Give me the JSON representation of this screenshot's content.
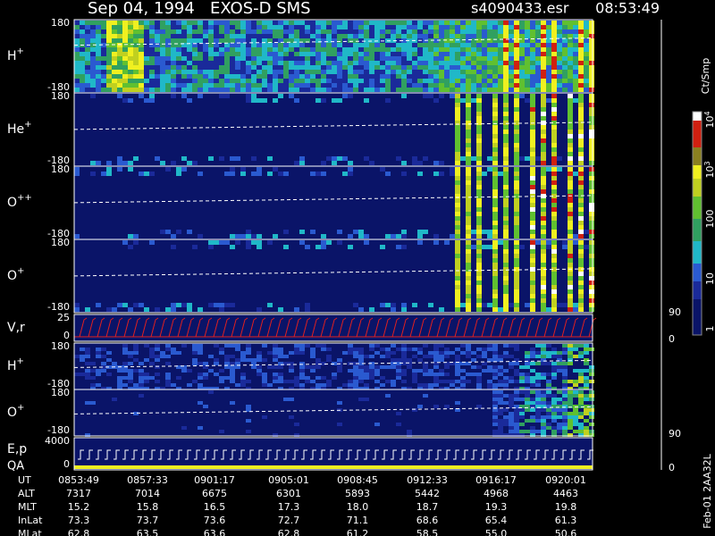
{
  "header": {
    "title": "Sep 04, 1994   EXOS-D SMS",
    "file": "s4090433.esr",
    "time": "08:53:49"
  },
  "panels": [
    {
      "label": "H",
      "sup": "+",
      "top": "180",
      "bottom": "-180"
    },
    {
      "label": "He",
      "sup": "+",
      "top": "180",
      "bottom": "-180"
    },
    {
      "label": "O",
      "sup": "++",
      "top": "180",
      "bottom": "-180"
    },
    {
      "label": "O",
      "sup": "+",
      "top": "180",
      "bottom": "-180"
    },
    {
      "label": "V,r",
      "top": "25",
      "bottom": "0",
      "right_top": "90",
      "right_bottom": "0"
    },
    {
      "label": "H",
      "sup": "+",
      "top": "180",
      "bottom": "-180"
    },
    {
      "label": "O",
      "sup": "+",
      "top": "180",
      "bottom": "-180",
      "right_bottom": "90"
    },
    {
      "label": "E,p",
      "label2": "QA",
      "top": "4000",
      "bottom": "0",
      "right_bottom": "0"
    }
  ],
  "colorbar": {
    "unit": "Ct/Smp",
    "ticks": [
      {
        "base": "1"
      },
      {
        "base": "10"
      },
      {
        "base": "100"
      },
      {
        "base": "10",
        "exp": "3"
      },
      {
        "base": "10",
        "exp": "4"
      }
    ]
  },
  "table": {
    "rows": [
      {
        "label": "UT",
        "values": [
          "0853:49",
          "0857:33",
          "0901:17",
          "0905:01",
          "0908:45",
          "0912:33",
          "0916:17",
          "0920:01"
        ]
      },
      {
        "label": "ALT",
        "values": [
          "7317",
          "7014",
          "6675",
          "6301",
          "5893",
          "5442",
          "4968",
          "4463"
        ]
      },
      {
        "label": "MLT",
        "values": [
          "15.2",
          "15.8",
          "16.5",
          "17.3",
          "18.0",
          "18.7",
          "19.3",
          "19.8"
        ]
      },
      {
        "label": "InLat",
        "values": [
          "73.3",
          "73.7",
          "73.6",
          "72.7",
          "71.1",
          "68.6",
          "65.4",
          "61.3"
        ]
      },
      {
        "label": "MLat",
        "values": [
          "62.8",
          "63.5",
          "63.6",
          "62.8",
          "61.2",
          "58.5",
          "55.0",
          "50.6"
        ]
      }
    ]
  },
  "footer": "Feb-01 2AA32L"
}
